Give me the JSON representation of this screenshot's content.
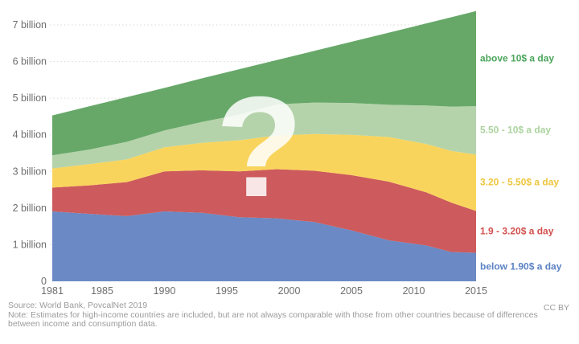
{
  "chart_data": {
    "type": "area",
    "stacked": true,
    "title": "",
    "xlabel": "",
    "ylabel": "",
    "x": [
      1981,
      1984,
      1987,
      1990,
      1993,
      1996,
      1999,
      2002,
      2005,
      2008,
      2011,
      2013,
      2015
    ],
    "series": [
      {
        "id": "below-1-90",
        "name": "below 1.90$ a day",
        "color": "#6b89c4",
        "legend_color": "#5c83c4",
        "values": [
          1.91,
          1.84,
          1.78,
          1.91,
          1.87,
          1.75,
          1.72,
          1.62,
          1.39,
          1.12,
          0.98,
          0.8,
          0.78
        ]
      },
      {
        "id": "1-90-to-3-20",
        "name": "1.9 - 3.20$ a day",
        "color": "#cd5a5c",
        "legend_color": "#d2504e",
        "values": [
          0.65,
          0.78,
          0.93,
          1.09,
          1.16,
          1.25,
          1.34,
          1.4,
          1.51,
          1.6,
          1.45,
          1.35,
          1.14
        ]
      },
      {
        "id": "3-20-to-5-50",
        "name": "3.20 - 5.50$ a day",
        "color": "#f9d45c",
        "legend_color": "#eec63d",
        "values": [
          0.52,
          0.58,
          0.62,
          0.66,
          0.75,
          0.85,
          0.92,
          1.0,
          1.1,
          1.22,
          1.32,
          1.41,
          1.54
        ]
      },
      {
        "id": "5-50-to-10",
        "name": "5.50 - 10$ a day",
        "color": "#b5d3aa",
        "legend_color": "#abd29e",
        "values": [
          0.36,
          0.4,
          0.48,
          0.46,
          0.57,
          0.7,
          0.85,
          0.86,
          0.87,
          0.88,
          1.05,
          1.21,
          1.32
        ]
      },
      {
        "id": "above-10",
        "name": "above 10$ a day",
        "color": "#67a869",
        "legend_color": "#4ba65c",
        "values": [
          1.09,
          1.18,
          1.22,
          1.16,
          1.19,
          1.24,
          1.21,
          1.41,
          1.67,
          1.97,
          2.24,
          2.44,
          2.6
        ]
      }
    ],
    "y_ticks": [
      "0",
      "1 billion",
      "2 billion",
      "3 billion",
      "4 billion",
      "5 billion",
      "6 billion",
      "7 billion"
    ],
    "x_ticks": [
      1981,
      1985,
      1990,
      1995,
      2000,
      2005,
      2010,
      2015
    ],
    "ylim": [
      0,
      7.38
    ],
    "xlim": [
      1981,
      2015
    ],
    "grid": "dotted horizontal",
    "gridline_color": "#d9d9d9",
    "axis_label_color": "#6e6e6e",
    "legend_position": "right"
  },
  "overlay": {
    "question_mark": "?"
  },
  "footer": {
    "source": "Source: World Bank, PovcalNet 2019",
    "note": "Note: Estimates for high-income countries are included, but are not always comparable with those from other countries because of differences between income and consumption data.",
    "license": "CC BY"
  }
}
